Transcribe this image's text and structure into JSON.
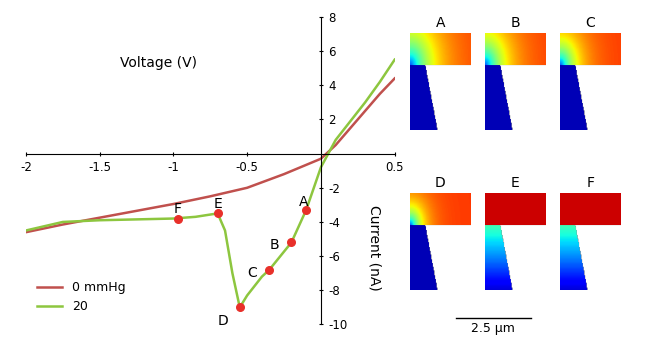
{
  "chart_data": {
    "type": "line",
    "x_label": "Voltage (V)",
    "y_label": "Current (nA)",
    "xlim": [
      -2,
      0.5
    ],
    "xticks": [
      -2,
      -1.5,
      -1,
      -0.5,
      0.5
    ],
    "ylim": [
      -10,
      8
    ],
    "yticks": [
      -10,
      -8,
      -6,
      -4,
      -2,
      2,
      4,
      6,
      8
    ],
    "legend": "lower left",
    "series": [
      {
        "name": "0 mmHg",
        "color": "#c0504d",
        "x": [
          -2,
          -1.75,
          -1.5,
          -1.25,
          -1,
          -0.75,
          -0.5,
          -0.25,
          0,
          0.1,
          0.2,
          0.3,
          0.4,
          0.5
        ],
        "values": [
          -4.6,
          -4.15,
          -3.75,
          -3.35,
          -2.95,
          -2.5,
          -2.0,
          -1.2,
          -0.3,
          0.5,
          1.5,
          2.5,
          3.5,
          4.4
        ]
      },
      {
        "name": "20",
        "color": "#8dc63f",
        "x": [
          -2,
          -1.75,
          -1.5,
          -1.25,
          -1,
          -0.85,
          -0.7,
          -0.65,
          -0.6,
          -0.55,
          -0.5,
          -0.4,
          -0.35,
          -0.2,
          -0.1,
          0,
          0.05,
          0.1,
          0.2,
          0.3,
          0.4,
          0.5
        ],
        "values": [
          -4.5,
          -4.0,
          -3.9,
          -3.85,
          -3.8,
          -3.7,
          -3.5,
          -4.5,
          -7.0,
          -9.0,
          -8.3,
          -7.2,
          -6.8,
          -5.2,
          -3.3,
          -0.8,
          0.0,
          0.8,
          1.9,
          3.0,
          4.2,
          5.5
        ]
      }
    ],
    "points": {
      "labels": [
        "A",
        "B",
        "C",
        "D",
        "E",
        "F"
      ],
      "x": [
        -0.1,
        -0.2,
        -0.35,
        -0.55,
        -0.7,
        -0.97
      ],
      "y": [
        -3.3,
        -5.2,
        -6.8,
        -9.0,
        -3.5,
        -3.8
      ],
      "color": "#e8302a"
    }
  },
  "insets": {
    "labels": [
      "A",
      "B",
      "C",
      "D",
      "E",
      "F"
    ],
    "scale_bar": "2.5 μm"
  }
}
